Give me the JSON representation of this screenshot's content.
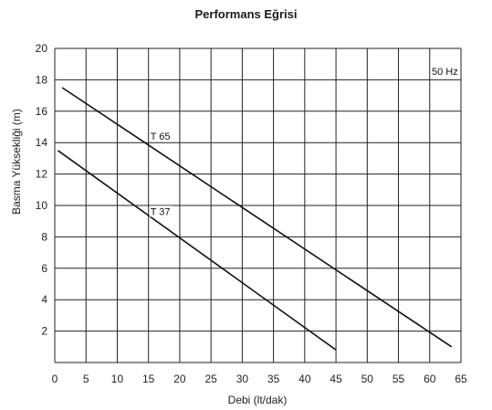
{
  "chart_data": {
    "type": "line",
    "title": "Performans Eğrisi",
    "xlabel": "Debi (lt/dak)",
    "ylabel": "Basma Yüksekliği (m)",
    "xlim": [
      0,
      65
    ],
    "ylim": [
      0,
      20
    ],
    "x_ticks": [
      0,
      5,
      10,
      15,
      20,
      25,
      30,
      35,
      40,
      45,
      50,
      55,
      60,
      65
    ],
    "y_ticks": [
      2,
      4,
      6,
      8,
      10,
      12,
      14,
      16,
      18,
      20
    ],
    "grid": true,
    "annotation": "50 Hz",
    "series": [
      {
        "name": "T 65",
        "x": [
          1.2,
          63.5
        ],
        "y": [
          17.5,
          1.0
        ],
        "label_at": [
          15,
          14.2
        ]
      },
      {
        "name": "T 37",
        "x": [
          0.5,
          45
        ],
        "y": [
          13.5,
          0.8
        ],
        "label_at": [
          15,
          9.4
        ]
      }
    ],
    "colors": {
      "line": "#111111",
      "grid": "#222222"
    }
  }
}
